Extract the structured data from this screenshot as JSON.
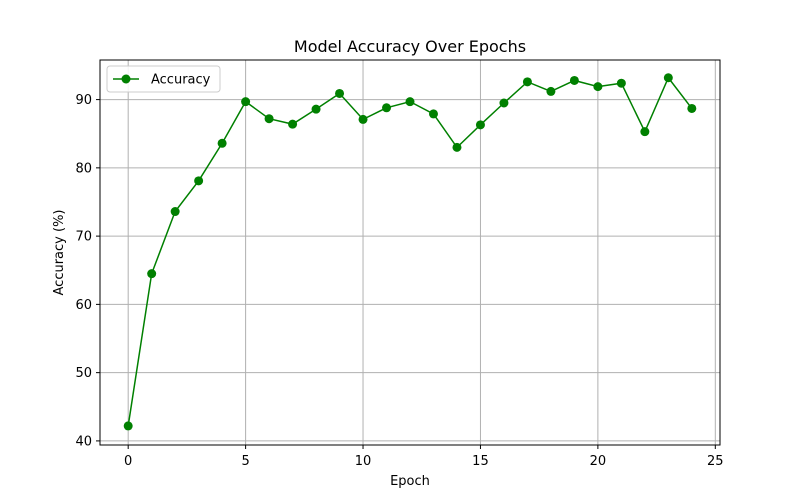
{
  "chart_data": {
    "type": "line",
    "title": "Model Accuracy Over Epochs",
    "xlabel": "Epoch",
    "ylabel": "Accuracy (%)",
    "xlim": [
      -1.2,
      25.2
    ],
    "ylim": [
      39.4,
      95.8
    ],
    "xticks": [
      0,
      5,
      10,
      15,
      20,
      25
    ],
    "yticks": [
      40,
      50,
      60,
      70,
      80,
      90
    ],
    "grid": true,
    "legend_position": "top-left",
    "series": [
      {
        "name": "Accuracy",
        "color": "#008000",
        "marker": "circle",
        "x": [
          0,
          1,
          2,
          3,
          4,
          5,
          6,
          7,
          8,
          9,
          10,
          11,
          12,
          13,
          14,
          15,
          16,
          17,
          18,
          19,
          20,
          21,
          22,
          23,
          24
        ],
        "values": [
          42.2,
          64.5,
          73.6,
          78.1,
          83.6,
          89.7,
          87.2,
          86.4,
          88.6,
          90.9,
          87.1,
          88.8,
          89.7,
          87.9,
          83.0,
          86.3,
          89.5,
          92.6,
          91.2,
          92.8,
          91.9,
          92.4,
          85.3,
          93.2,
          88.7
        ]
      }
    ]
  }
}
